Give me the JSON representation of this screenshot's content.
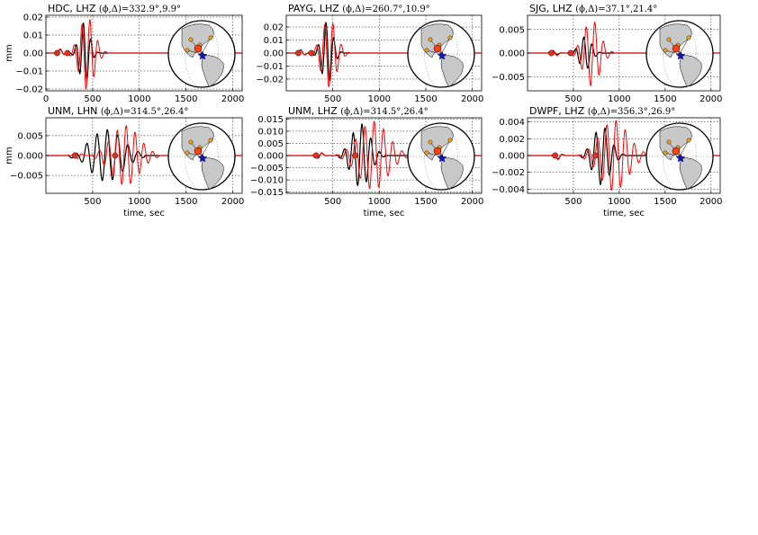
{
  "chart_data": [
    {
      "type": "line",
      "title": "HDC, LHZ",
      "title_params": "(ϕ,Δ)=332.9°,9.9°",
      "ylabel": "mm",
      "xlabel": "",
      "xlim": [
        0,
        2100
      ],
      "ylim": [
        -0.021,
        0.021
      ],
      "xticks": [
        0,
        500,
        1000,
        1500,
        2000
      ],
      "xtick_labels": [
        "0",
        "500",
        "1000",
        "1500",
        "2000"
      ],
      "yticks": [
        -0.02,
        -0.01,
        0.0,
        0.01,
        0.02
      ],
      "ytick_labels": [
        "−0.02",
        "−0.01",
        "0.00",
        "0.01",
        "0.02"
      ],
      "grid": true,
      "marker_x": [
        120,
        230
      ],
      "series": [
        {
          "color": "#000000",
          "waveform": {
            "t0": 300,
            "t1": 520,
            "period": 80,
            "amp": 0.017
          }
        },
        {
          "color": "#ff0000",
          "waveform": {
            "t0": 280,
            "t1": 600,
            "period": 85,
            "amp": 0.02
          }
        }
      ]
    },
    {
      "type": "line",
      "title": "PAYG, LHZ",
      "title_params": "(ϕ,Δ)=260.7°,10.9°",
      "ylabel": "",
      "xlabel": "",
      "xlim": [
        0,
        2100
      ],
      "ylim": [
        -0.029,
        0.029
      ],
      "xticks": [
        500,
        1000,
        1500,
        2000
      ],
      "xtick_labels": [
        "500",
        "1000",
        "1500",
        "2000"
      ],
      "yticks": [
        -0.02,
        -0.01,
        0.0,
        0.01,
        0.02
      ],
      "ytick_labels": [
        "−0.02",
        "−0.01",
        "0.00",
        "0.01",
        "0.02"
      ],
      "grid": true,
      "marker_x": [
        130,
        270
      ],
      "series": [
        {
          "color": "#000000",
          "waveform": {
            "t0": 320,
            "t1": 560,
            "period": 85,
            "amp": 0.024
          }
        },
        {
          "color": "#ff0000",
          "waveform": {
            "t0": 300,
            "t1": 620,
            "period": 90,
            "amp": 0.026
          }
        }
      ]
    },
    {
      "type": "line",
      "title": "SJG, LHZ",
      "title_params": "(ϕ,Δ)=37.1°,21.4°",
      "ylabel": "",
      "xlabel": "",
      "xlim": [
        0,
        2100
      ],
      "ylim": [
        -0.008,
        0.008
      ],
      "xticks": [
        500,
        1000,
        1500,
        2000
      ],
      "xtick_labels": [
        "500",
        "1000",
        "1500",
        "2000"
      ],
      "yticks": [
        -0.005,
        0.0,
        0.005
      ],
      "ytick_labels": [
        "−0.005",
        "0.000",
        "0.005"
      ],
      "grid": true,
      "marker_x": [
        260,
        470
      ],
      "series": [
        {
          "color": "#000000",
          "waveform": {
            "t0": 500,
            "t1": 760,
            "period": 90,
            "amp": 0.0035
          }
        },
        {
          "color": "#ff0000",
          "waveform": {
            "t0": 520,
            "t1": 880,
            "period": 95,
            "amp": 0.007
          }
        }
      ]
    },
    {
      "type": "line",
      "title": "UNM, LHN",
      "title_params": "(ϕ,Δ)=314.5°,26.4°",
      "ylabel": "mm",
      "xlabel": "time, sec",
      "xlim": [
        0,
        2100
      ],
      "ylim": [
        -0.0095,
        0.0095
      ],
      "xticks": [
        500,
        1000,
        1500,
        2000
      ],
      "xtick_labels": [
        "500",
        "1000",
        "1500",
        "2000"
      ],
      "yticks": [
        -0.005,
        0.0,
        0.005
      ],
      "ytick_labels": [
        "−0.005",
        "0.000",
        "0.005"
      ],
      "grid": true,
      "marker_x": [
        310,
        740
      ],
      "series": [
        {
          "color": "#000000",
          "waveform": {
            "t0": 300,
            "t1": 1000,
            "period": 110,
            "amp": 0.0065
          }
        },
        {
          "color": "#ff0000",
          "waveform": {
            "t0": 550,
            "t1": 1150,
            "period": 95,
            "amp": 0.0075
          }
        }
      ]
    },
    {
      "type": "line",
      "title": "UNM, LHZ",
      "title_params": "(ϕ,Δ)=314.5°,26.4°",
      "ylabel": "",
      "xlabel": "time, sec",
      "xlim": [
        0,
        2100
      ],
      "ylim": [
        -0.0155,
        0.0155
      ],
      "xticks": [
        500,
        1000,
        1500,
        2000
      ],
      "xtick_labels": [
        "500",
        "1000",
        "1500",
        "2000"
      ],
      "yticks": [
        -0.015,
        -0.01,
        -0.005,
        0.0,
        0.005,
        0.01,
        0.015
      ],
      "ytick_labels": [
        "−0.015",
        "−0.010",
        "−0.005",
        "0.000",
        "0.005",
        "0.010",
        "0.015"
      ],
      "grid": true,
      "marker_x": [
        320,
        740
      ],
      "series": [
        {
          "color": "#000000",
          "waveform": {
            "t0": 600,
            "t1": 1000,
            "period": 95,
            "amp": 0.013
          }
        },
        {
          "color": "#ff0000",
          "waveform": {
            "t0": 620,
            "t1": 1250,
            "period": 100,
            "amp": 0.014
          }
        }
      ]
    },
    {
      "type": "line",
      "title": "DWPF, LHZ",
      "title_params": "(ϕ,Δ)=356.3°,26.9°",
      "ylabel": "",
      "xlabel": "time, sec",
      "xlim": [
        0,
        2100
      ],
      "ylim": [
        -0.0045,
        0.0045
      ],
      "xticks": [
        500,
        1000,
        1500,
        2000
      ],
      "xtick_labels": [
        "500",
        "1000",
        "1500",
        "2000"
      ],
      "yticks": [
        -0.004,
        -0.002,
        0.0,
        0.002,
        0.004
      ],
      "ytick_labels": [
        "−0.004",
        "−0.002",
        "0.000",
        "0.002",
        "0.004"
      ],
      "grid": true,
      "marker_x": [
        300,
        740
      ],
      "series": [
        {
          "color": "#000000",
          "waveform": {
            "t0": 620,
            "t1": 1000,
            "period": 100,
            "amp": 0.0035
          }
        },
        {
          "color": "#ff0000",
          "waveform": {
            "t0": 640,
            "t1": 1250,
            "period": 100,
            "amp": 0.0042
          }
        }
      ]
    }
  ],
  "colors": {
    "observed": "#000000",
    "synthetic": "#ff0000",
    "marker": "#e03020",
    "event": "#1010d0",
    "station": "#f0a020",
    "land": "#c8c8c8"
  }
}
